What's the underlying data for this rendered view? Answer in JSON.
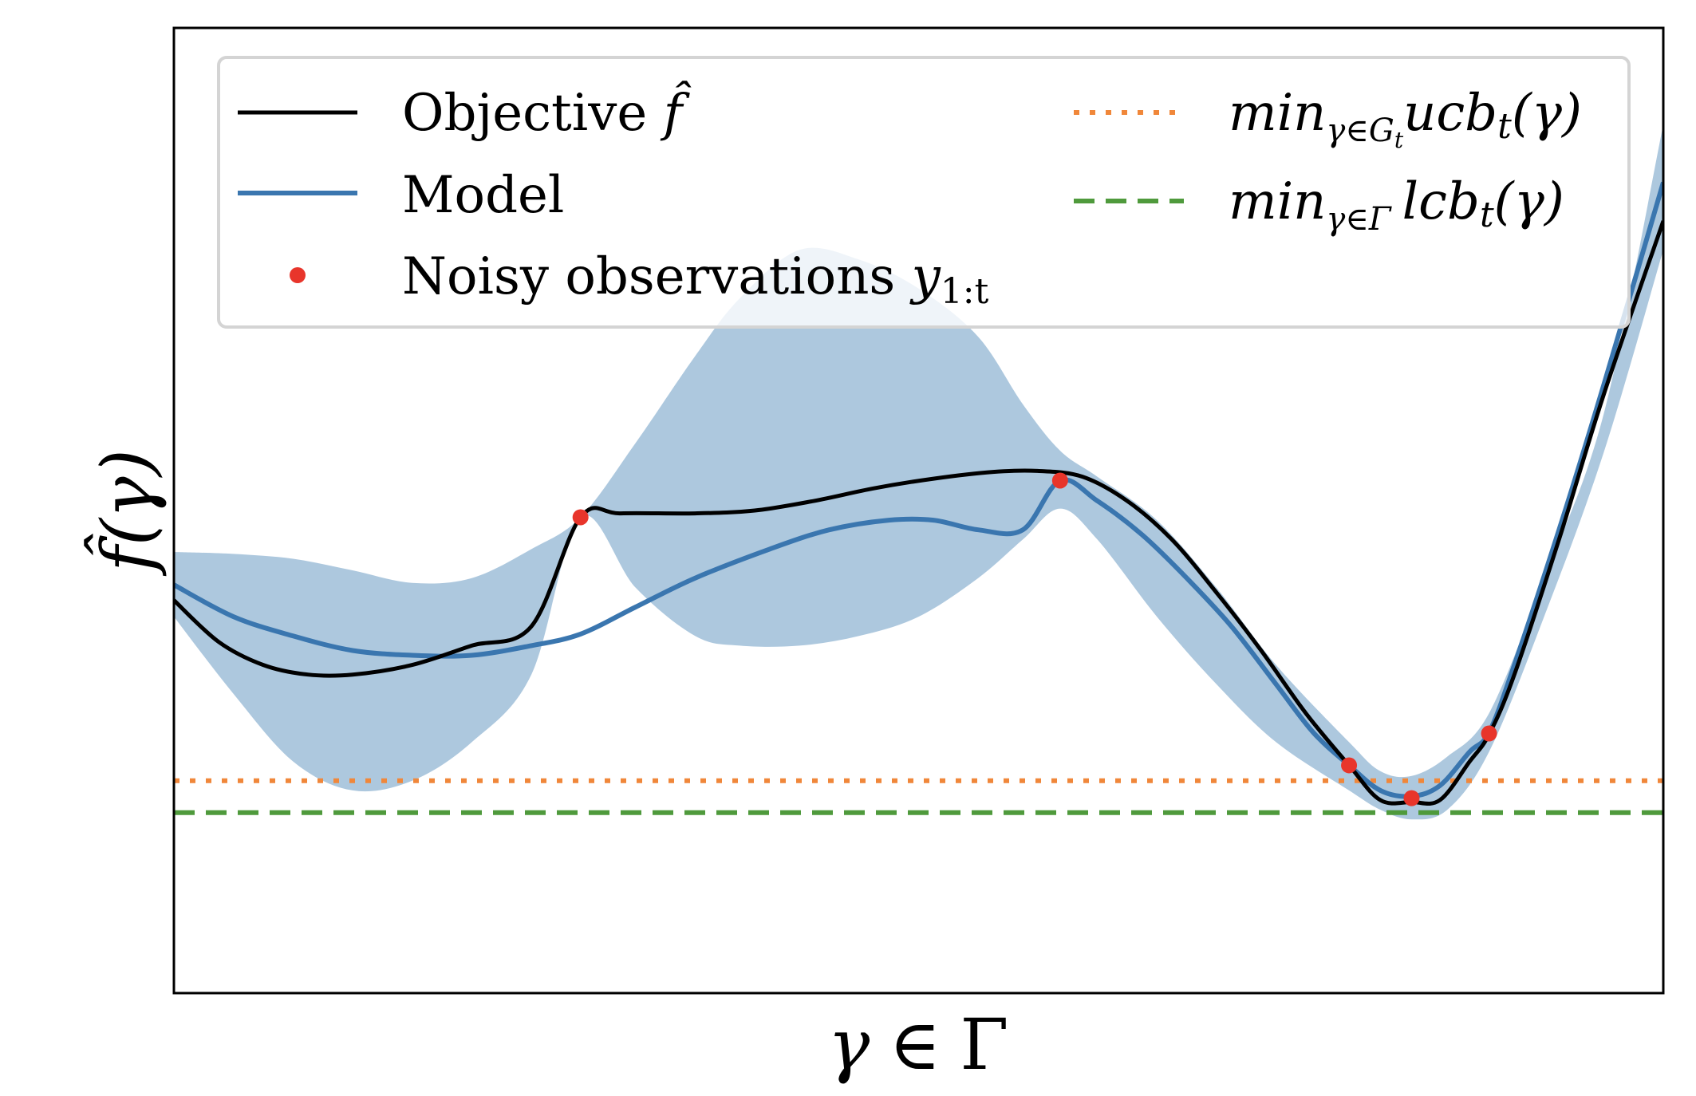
{
  "chart_data": {
    "type": "line",
    "title": "",
    "xlabel": "γ ∈ Γ",
    "ylabel": "f̂(γ)",
    "xlim": [
      0,
      1
    ],
    "ylim": [
      0,
      1
    ],
    "grid": false,
    "ticks": "none",
    "legend": {
      "placement": "top",
      "columns": 2,
      "entries": [
        {
          "label": "Objective f̂",
          "style": "solid",
          "color": "#000000"
        },
        {
          "label": "Model",
          "style": "solid",
          "color": "#3a76af"
        },
        {
          "label": "Noisy observations y_{1:t}",
          "style": "marker",
          "color": "#e8352b"
        },
        {
          "label": "min_{γ∈G_t} ucb_t(γ)",
          "style": "dotted",
          "color": "#f0873a"
        },
        {
          "label": "min_{γ∈Γ} lcb_t(γ)",
          "style": "dashed",
          "color": "#4f9a3c"
        }
      ]
    },
    "series": [
      {
        "name": "Objective f̂",
        "color": "#000000",
        "x": [
          0,
          0.03,
          0.06,
          0.09,
          0.12,
          0.16,
          0.2,
          0.24,
          0.273,
          0.3,
          0.35,
          0.39,
          0.43,
          0.47,
          0.51,
          0.55,
          0.58,
          0.61,
          0.64,
          0.67,
          0.7,
          0.73,
          0.76,
          0.789,
          0.81,
          0.831,
          0.85,
          0.87,
          0.883,
          0.9,
          0.93,
          0.96,
          1.0
        ],
        "y": [
          0.407,
          0.364,
          0.34,
          0.33,
          0.33,
          0.34,
          0.36,
          0.38,
          0.493,
          0.497,
          0.497,
          0.5,
          0.51,
          0.523,
          0.533,
          0.54,
          0.541,
          0.535,
          0.51,
          0.47,
          0.415,
          0.355,
          0.29,
          0.236,
          0.2,
          0.198,
          0.2,
          0.24,
          0.268,
          0.33,
          0.47,
          0.62,
          0.8
        ]
      },
      {
        "name": "Model",
        "color": "#3a76af",
        "x": [
          0,
          0.04,
          0.08,
          0.12,
          0.16,
          0.2,
          0.24,
          0.273,
          0.31,
          0.35,
          0.4,
          0.44,
          0.48,
          0.51,
          0.54,
          0.57,
          0.595,
          0.62,
          0.65,
          0.68,
          0.71,
          0.74,
          0.765,
          0.789,
          0.81,
          0.831,
          0.85,
          0.87,
          0.883,
          0.9,
          0.93,
          0.96,
          1.0
        ],
        "y": [
          0.423,
          0.39,
          0.37,
          0.355,
          0.35,
          0.35,
          0.36,
          0.372,
          0.4,
          0.43,
          0.46,
          0.48,
          0.49,
          0.49,
          0.48,
          0.48,
          0.531,
          0.51,
          0.475,
          0.43,
          0.38,
          0.32,
          0.27,
          0.236,
          0.21,
          0.204,
          0.215,
          0.25,
          0.27,
          0.34,
          0.48,
          0.63,
          0.84
        ]
      }
    ],
    "confidence_band": {
      "name": "Model confidence interval",
      "color": "#adc8de",
      "x": [
        0,
        0.04,
        0.08,
        0.12,
        0.16,
        0.2,
        0.24,
        0.273,
        0.31,
        0.35,
        0.38,
        0.42,
        0.46,
        0.5,
        0.54,
        0.57,
        0.595,
        0.62,
        0.66,
        0.7,
        0.74,
        0.789,
        0.81,
        0.831,
        0.855,
        0.883,
        0.92,
        0.96,
        1.0
      ],
      "upper": [
        0.457,
        0.455,
        0.45,
        0.438,
        0.425,
        0.43,
        0.46,
        0.493,
        0.57,
        0.66,
        0.72,
        0.77,
        0.76,
        0.73,
        0.68,
        0.61,
        0.562,
        0.535,
        0.49,
        0.42,
        0.34,
        0.26,
        0.23,
        0.225,
        0.245,
        0.29,
        0.43,
        0.6,
        0.9
      ],
      "lower": [
        0.39,
        0.31,
        0.24,
        0.21,
        0.22,
        0.26,
        0.33,
        0.493,
        0.42,
        0.37,
        0.36,
        0.36,
        0.37,
        0.39,
        0.43,
        0.47,
        0.502,
        0.47,
        0.39,
        0.32,
        0.26,
        0.21,
        0.19,
        0.18,
        0.19,
        0.25,
        0.39,
        0.56,
        0.77
      ]
    },
    "observations": {
      "name": "Noisy observations y_{1:t}",
      "color": "#e8352b",
      "x": [
        0.273,
        0.595,
        0.789,
        0.831,
        0.883
      ],
      "y": [
        0.493,
        0.531,
        0.236,
        0.202,
        0.269
      ]
    },
    "hlines": [
      {
        "name": "min_{γ∈G_t} ucb_t(γ)",
        "y": 0.22,
        "style": "dotted",
        "color": "#f0873a"
      },
      {
        "name": "min_{γ∈Γ} lcb_t(γ)",
        "y": 0.187,
        "style": "dashed",
        "color": "#4f9a3c"
      }
    ]
  },
  "labels": {
    "legend_objective": "Objective",
    "legend_objective_sym": "f̂",
    "legend_model": "Model",
    "legend_obs": "Noisy observations",
    "legend_obs_sym": "y",
    "legend_obs_sub": "1:t",
    "legend_ucb_min": "min",
    "legend_ucb_sub": "γ∈G",
    "legend_ucb_subsub": "t",
    "legend_ucb_body": "ucb",
    "legend_ucb_t": "t",
    "legend_ucb_arg": "(γ)",
    "legend_lcb_min": "min",
    "legend_lcb_sub": "γ∈Γ",
    "legend_lcb_body": "lcb",
    "legend_lcb_t": "t",
    "legend_lcb_arg": "(γ)",
    "xlabel_gamma": "γ",
    "xlabel_in": "∈",
    "xlabel_Gamma": "Γ",
    "ylabel_f": "f̂",
    "ylabel_arg": "(γ)"
  }
}
